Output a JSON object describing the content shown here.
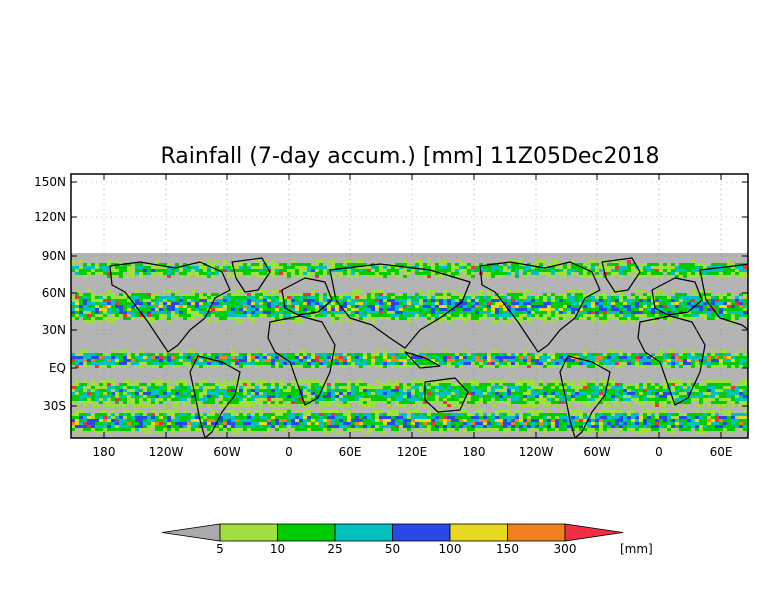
{
  "title": "Rainfall (7-day accum.) [mm] 11Z05Dec2018",
  "y_axis_labels": [
    "150N",
    "120N",
    "90N",
    "60N",
    "30N",
    "EQ",
    "30S"
  ],
  "x_axis_labels": [
    "180",
    "120W",
    "60W",
    "0",
    "60E",
    "120E",
    "180",
    "120W",
    "60W",
    "0",
    "60E"
  ],
  "legend": {
    "unit": "[mm]",
    "thresholds": [
      "5",
      "10",
      "25",
      "50",
      "100",
      "150",
      "300"
    ],
    "colors": [
      "#aaaaaa",
      "#9fe040",
      "#00cc00",
      "#00c0c0",
      "#2848e8",
      "#e8d820",
      "#f08020",
      "#f03040"
    ]
  },
  "map": {
    "no_data_color": "#ffffff",
    "background_color": "#b4b4b4",
    "coastline_color": "#000000",
    "grid": "dotted"
  }
}
